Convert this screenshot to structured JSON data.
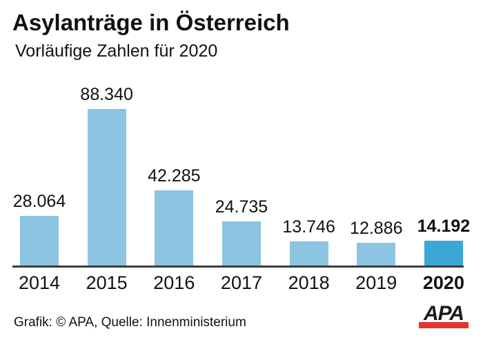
{
  "header": {
    "title": "Asylanträge in Österreich",
    "subtitle": "Vorläufige Zahlen für 2020"
  },
  "chart_data": {
    "type": "bar",
    "title": "Asylanträge in Österreich",
    "subtitle": "Vorläufige Zahlen für 2020",
    "categories": [
      "2014",
      "2015",
      "2016",
      "2017",
      "2018",
      "2019",
      "2020"
    ],
    "values": [
      28064,
      88340,
      42285,
      24735,
      13746,
      12886,
      14192
    ],
    "value_labels": [
      "28.064",
      "88.340",
      "42.285",
      "24.735",
      "13.746",
      "12.886",
      "14.192"
    ],
    "xlabel": "",
    "ylabel": "",
    "ylim": [
      0,
      88340
    ],
    "grid": false,
    "legend": false,
    "highlight_index": 6,
    "bar_color": "#8cc4e2",
    "highlight_color": "#3ba7d4",
    "axis_color": "#3b3b3b"
  },
  "footer": {
    "credit": "Grafik: © APA, Quelle: Innenministerium",
    "logo_text": "APA",
    "logo_text_color": "#1a1a1a",
    "logo_bar_color": "#e5332d"
  }
}
